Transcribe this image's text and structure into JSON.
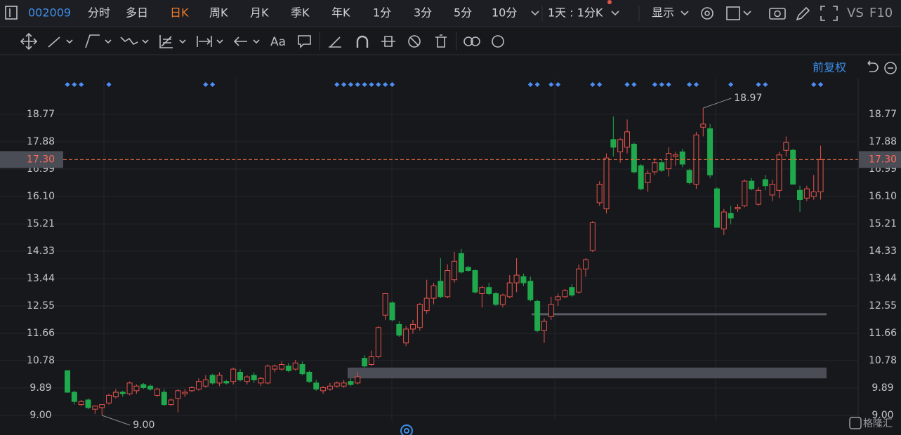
{
  "header": {
    "code": "002009",
    "tabs": [
      "分时",
      "多日",
      "日K",
      "周K",
      "月K",
      "季K",
      "年K",
      "1分",
      "3分",
      "5分",
      "10分"
    ],
    "period": "1天 : 1分K",
    "display": "显示",
    "vs": "VS",
    "f10": "F10"
  },
  "toolbar": {
    "font_button": "Aa"
  },
  "logo": "格隆汇",
  "chart_data": {
    "type": "candlestick",
    "adjust": "前复权",
    "open": [
      10.45,
      9.75,
      9.35,
      9.5,
      9.2,
      9.25,
      9.4,
      9.6,
      9.75,
      9.7,
      9.8,
      10.0,
      9.95,
      9.65,
      9.75,
      9.35,
      9.55,
      9.7,
      9.8,
      9.85,
      9.95,
      10.3,
      10.05,
      10.1,
      10.1,
      10.4,
      10.1,
      10.3,
      10.05,
      10.05,
      10.5,
      10.5,
      10.6,
      10.5,
      10.65,
      10.4,
      10.05,
      9.8,
      9.85,
      9.95,
      9.95,
      10.1,
      10.05,
      10.85,
      10.65,
      10.9,
      12.25,
      12.65,
      11.95,
      11.35,
      11.8,
      11.85,
      12.4,
      12.8,
      13.35,
      12.85,
      13.4,
      14.25,
      13.8,
      13.7,
      12.95,
      13.15,
      12.95,
      12.6,
      12.85,
      13.3,
      13.5,
      13.35,
      12.7,
      11.75,
      12.2,
      12.75,
      12.85,
      13.15,
      13.0,
      13.75,
      14.35,
      15.9,
      15.7,
      17.95,
      17.55,
      17.7,
      17.8,
      17.1,
      16.55,
      16.9,
      17.2,
      17.0,
      17.4,
      17.55,
      16.95,
      16.5,
      18.35,
      18.3,
      16.35,
      15.05,
      15.55,
      15.7,
      15.8,
      16.6,
      15.85,
      16.65,
      16.15,
      16.3,
      17.6,
      17.6,
      16.3,
      16.05,
      16.1,
      16.25
    ],
    "high": [
      10.45,
      9.8,
      9.5,
      9.55,
      9.3,
      9.35,
      9.7,
      9.85,
      9.8,
      10.1,
      10.0,
      10.05,
      10.0,
      9.9,
      9.85,
      9.55,
      9.85,
      9.85,
      9.95,
      10.2,
      10.3,
      10.35,
      10.4,
      10.15,
      10.55,
      10.5,
      10.3,
      10.4,
      10.25,
      10.65,
      10.65,
      10.75,
      10.7,
      10.8,
      10.75,
      10.45,
      10.15,
      9.95,
      10.05,
      10.1,
      10.15,
      10.2,
      10.4,
      10.95,
      11.1,
      11.9,
      12.95,
      12.7,
      12.05,
      11.9,
      12.1,
      12.65,
      13.4,
      13.3,
      14.1,
      13.9,
      14.3,
      14.4,
      13.85,
      13.75,
      13.2,
      13.3,
      13.0,
      12.95,
      13.55,
      14.1,
      13.6,
      13.5,
      12.75,
      12.15,
      12.85,
      12.95,
      13.1,
      13.25,
      13.9,
      14.1,
      15.3,
      16.6,
      17.5,
      18.7,
      18.0,
      18.6,
      17.85,
      17.15,
      16.95,
      17.35,
      17.3,
      17.7,
      17.55,
      17.65,
      17.0,
      18.2,
      18.97,
      18.45,
      16.4,
      15.7,
      15.8,
      15.85,
      16.65,
      16.7,
      16.4,
      16.8,
      16.65,
      17.55,
      18.05,
      17.65,
      16.45,
      16.45,
      16.8,
      17.75
    ],
    "low": [
      9.75,
      9.35,
      9.3,
      9.2,
      9.05,
      9.0,
      9.35,
      9.55,
      9.6,
      9.65,
      9.7,
      9.85,
      9.8,
      9.6,
      9.3,
      9.3,
      9.1,
      9.6,
      9.75,
      9.8,
      9.9,
      10.0,
      9.95,
      10.0,
      10.0,
      10.1,
      10.0,
      10.05,
      9.95,
      10.0,
      10.4,
      10.45,
      10.4,
      10.45,
      10.3,
      10.05,
      9.8,
      9.7,
      9.8,
      9.9,
      9.9,
      9.95,
      10.0,
      10.55,
      10.6,
      10.85,
      12.1,
      12.05,
      11.55,
      11.25,
      11.65,
      11.75,
      12.3,
      12.6,
      12.8,
      12.8,
      13.3,
      13.6,
      13.65,
      12.95,
      12.5,
      12.9,
      12.55,
      12.5,
      12.8,
      13.0,
      13.2,
      12.7,
      11.7,
      11.35,
      12.1,
      12.55,
      12.8,
      12.85,
      12.95,
      13.5,
      14.3,
      15.8,
      15.55,
      17.4,
      17.2,
      17.5,
      16.85,
      16.3,
      16.25,
      16.8,
      16.9,
      16.75,
      17.1,
      17.05,
      16.5,
      16.35,
      18.05,
      16.7,
      15.1,
      14.85,
      15.2,
      15.6,
      15.75,
      16.3,
      15.8,
      16.3,
      15.95,
      16.05,
      17.4,
      16.5,
      15.6,
      15.95,
      16.0,
      16.0
    ],
    "close": [
      9.75,
      9.45,
      9.45,
      9.25,
      9.3,
      9.35,
      9.65,
      9.75,
      9.7,
      10.05,
      9.95,
      9.9,
      9.85,
      9.85,
      9.35,
      9.5,
      9.8,
      9.75,
      9.9,
      10.1,
      10.15,
      10.05,
      10.3,
      10.05,
      10.5,
      10.15,
      10.25,
      10.15,
      10.2,
      10.6,
      10.6,
      10.65,
      10.45,
      10.7,
      10.35,
      10.1,
      9.85,
      9.9,
      9.95,
      10.05,
      10.05,
      10.0,
      10.25,
      10.6,
      10.9,
      11.85,
      12.95,
      12.1,
      11.6,
      11.8,
      11.95,
      12.6,
      12.8,
      13.2,
      12.85,
      13.7,
      14.0,
      13.65,
      13.7,
      13.0,
      13.15,
      12.95,
      12.6,
      12.9,
      13.3,
      13.55,
      13.3,
      12.75,
      11.75,
      12.05,
      12.6,
      12.85,
      13.05,
      12.9,
      13.75,
      14.05,
      15.25,
      16.5,
      17.35,
      17.7,
      17.95,
      18.2,
      16.9,
      16.35,
      16.85,
      17.2,
      16.95,
      17.5,
      17.45,
      17.15,
      16.55,
      18.1,
      18.45,
      16.8,
      15.1,
      15.6,
      15.4,
      15.75,
      16.6,
      16.35,
      16.3,
      16.45,
      16.5,
      17.45,
      17.85,
      16.5,
      16.0,
      16.35,
      16.25,
      17.3
    ],
    "up_color": "#e5534b",
    "down_color": "#1fa94c",
    "ylim": [
      8.59,
      20.2
    ],
    "yticks": [
      18.77,
      17.88,
      16.99,
      {
        "value": 16.1,
        "label": "16.10"
      },
      15.21,
      14.33,
      13.44,
      12.55,
      11.66,
      10.78,
      9.89,
      {
        "value": 9,
        "label": "9.00"
      }
    ],
    "grid": true,
    "last_price": {
      "value": 17.3,
      "label": "17.30"
    },
    "high_label": 18.97,
    "low_label": {
      "value": 9,
      "label": "9.00"
    },
    "zones": [
      [
        10.2,
        10.55
      ]
    ],
    "levels": [
      12.28
    ],
    "event_markers": [
      0,
      1,
      2,
      6,
      20,
      21,
      39,
      40,
      41,
      42,
      43,
      44,
      45,
      46,
      47,
      67,
      68,
      70,
      71,
      76,
      77,
      81,
      82,
      85,
      86,
      87,
      90,
      91,
      96,
      100,
      101,
      108,
      109
    ],
    "marker_color": "#4e8ff7"
  }
}
